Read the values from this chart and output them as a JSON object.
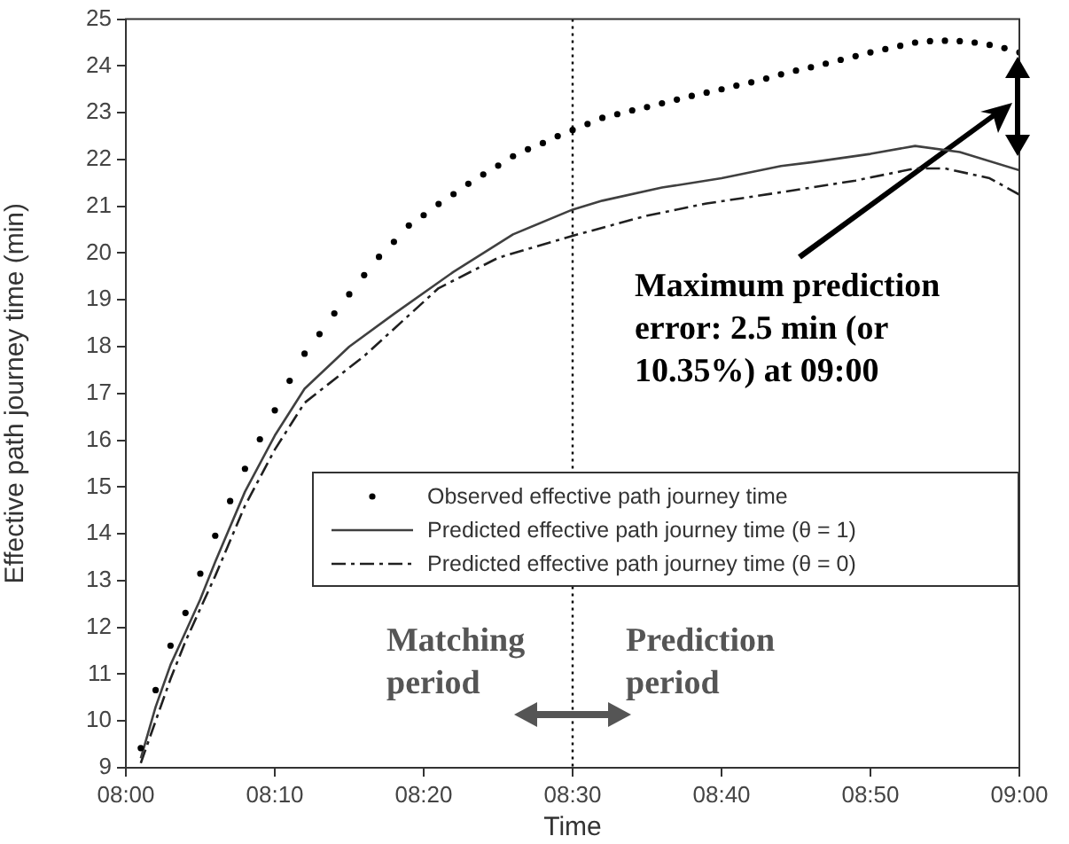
{
  "chart_data": {
    "type": "line",
    "xlabel": "Time",
    "ylabel": "Effective path journey time (min)",
    "xlim": [
      8,
      9
    ],
    "xticks": [
      {
        "value": 8,
        "label": "08:00"
      },
      {
        "value": 8.1667,
        "label": "08:10"
      },
      {
        "value": 8.3333,
        "label": "08:20"
      },
      {
        "value": 8.5,
        "label": "08:30"
      },
      {
        "value": 8.6667,
        "label": "08:40"
      },
      {
        "value": 8.8333,
        "label": "08:50"
      },
      {
        "value": 9,
        "label": "09:00"
      }
    ],
    "ylim": [
      9,
      25
    ],
    "yticks": [
      9,
      10,
      11,
      12,
      13,
      14,
      15,
      16,
      17,
      18,
      19,
      20,
      21,
      22,
      23,
      24,
      25
    ],
    "grid": false,
    "legend": "right",
    "series": [
      {
        "name": "Observed effective path journey time",
        "type": "scatter",
        "marker": "circle",
        "color": "#000000",
        "x": [
          8.0167,
          8.0333,
          8.05,
          8.0667,
          8.0833,
          8.1,
          8.1167,
          8.1333,
          8.15,
          8.1667,
          8.1833,
          8.2,
          8.2167,
          8.2333,
          8.25,
          8.2667,
          8.2833,
          8.3,
          8.3167,
          8.3333,
          8.35,
          8.3667,
          8.3833,
          8.4,
          8.4167,
          8.4333,
          8.45,
          8.4667,
          8.4833,
          8.5,
          8.5167,
          8.5333,
          8.55,
          8.5667,
          8.5833,
          8.6,
          8.6167,
          8.6333,
          8.65,
          8.6667,
          8.6833,
          8.7,
          8.7167,
          8.7333,
          8.75,
          8.7667,
          8.7833,
          8.8,
          8.8167,
          8.8333,
          8.85,
          8.8667,
          8.8833,
          8.9,
          8.9167,
          8.9333,
          8.95,
          8.9667,
          8.9833,
          9
        ],
        "values": [
          9.42,
          10.66,
          11.61,
          12.31,
          13.15,
          13.96,
          14.7,
          15.39,
          16.02,
          16.64,
          17.27,
          17.85,
          18.27,
          18.71,
          19.12,
          19.53,
          19.92,
          20.24,
          20.59,
          20.81,
          21.05,
          21.26,
          21.48,
          21.68,
          21.87,
          22.07,
          22.22,
          22.35,
          22.5,
          22.63,
          22.76,
          22.89,
          22.97,
          23.05,
          23.12,
          23.2,
          23.28,
          23.36,
          23.43,
          23.5,
          23.58,
          23.65,
          23.73,
          23.82,
          23.9,
          23.97,
          24.05,
          24.13,
          24.21,
          24.29,
          24.36,
          24.43,
          24.5,
          24.53,
          24.54,
          24.53,
          24.5,
          24.45,
          24.38,
          24.29
        ]
      },
      {
        "name": "Predicted effective path journey time (θ = 1)",
        "marker": "none",
        "line_style": "solid",
        "color": "#404040",
        "x": [
          8.0167,
          8.0333,
          8.05,
          8.0667,
          8.0833,
          8.1,
          8.1333,
          8.1667,
          8.2,
          8.25,
          8.3,
          8.3667,
          8.4333,
          8.5,
          8.5333,
          8.6,
          8.6667,
          8.7333,
          8.7667,
          8.8333,
          8.8833,
          8.9333,
          9
        ],
        "values": [
          9.2,
          10.3,
          11.2,
          11.9,
          12.6,
          13.4,
          14.9,
          16.1,
          17.1,
          18.0,
          18.7,
          19.6,
          20.4,
          20.93,
          21.12,
          21.4,
          21.6,
          21.86,
          21.94,
          22.12,
          22.29,
          22.16,
          21.77
        ]
      },
      {
        "name": "Predicted effective path journey time (θ = 0)",
        "marker": "none",
        "line_style": "dashed",
        "color": "#202020",
        "x": [
          8.0167,
          8.0333,
          8.05,
          8.0667,
          8.0833,
          8.1,
          8.1333,
          8.1667,
          8.2,
          8.2667,
          8.35,
          8.4167,
          8.5,
          8.5833,
          8.65,
          8.7333,
          8.8167,
          8.8833,
          8.9167,
          8.9667,
          9
        ],
        "values": [
          9.1,
          10.0,
          10.9,
          11.7,
          12.4,
          13.1,
          14.6,
          15.8,
          16.8,
          17.8,
          19.25,
          19.9,
          20.37,
          20.8,
          21.06,
          21.3,
          21.55,
          21.81,
          21.81,
          21.6,
          21.25
        ]
      }
    ],
    "ref_lines": [
      {
        "axis": "x",
        "value": 8.5,
        "line_style": "dotted",
        "color": "#000000"
      }
    ],
    "annotations": [
      "Maximum prediction error: 2.5 min (or 10.35%) at 09:00",
      "Matching period",
      "Prediction period"
    ]
  }
}
